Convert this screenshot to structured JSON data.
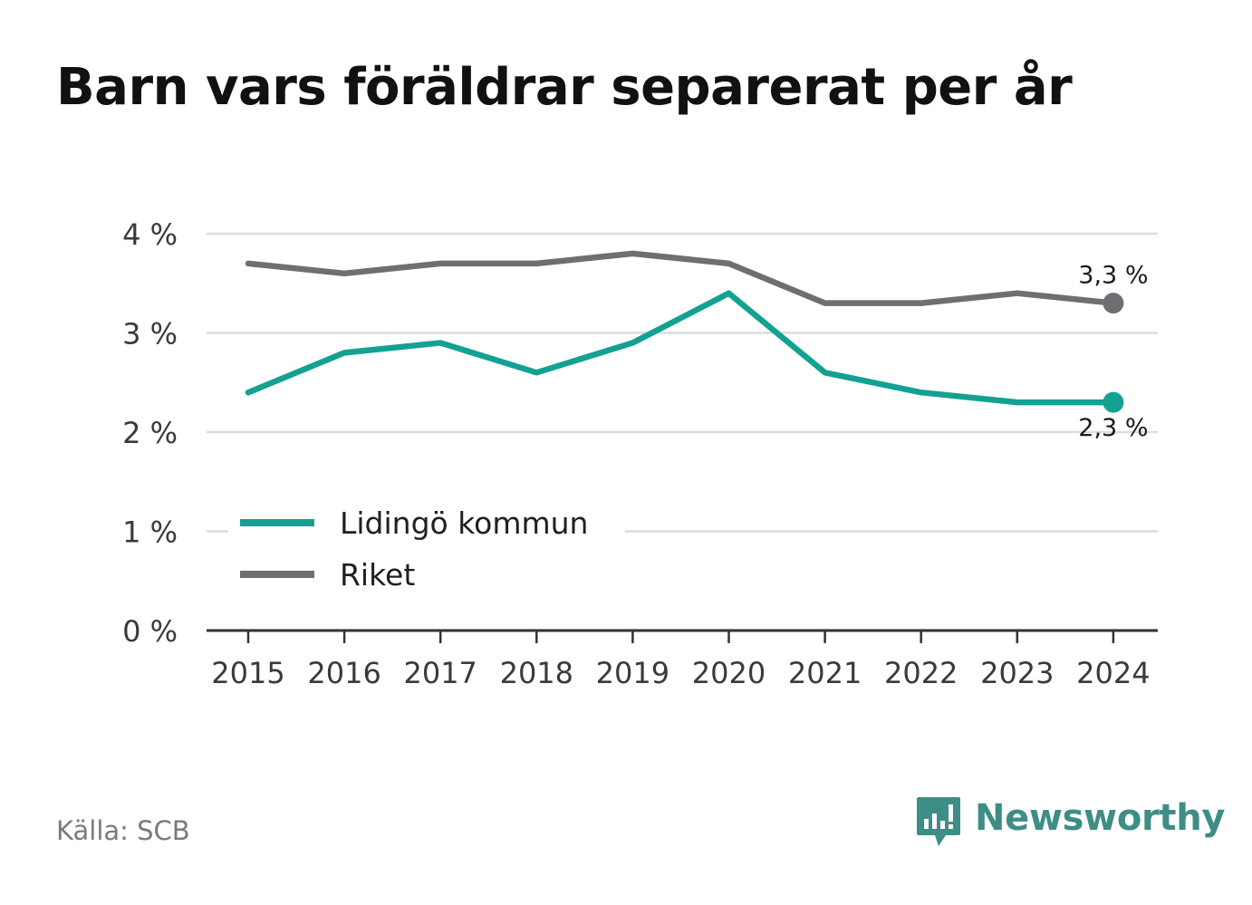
{
  "title": "Barn vars föräldrar separerat per år",
  "source": "Källa: SCB",
  "brand": {
    "name": "Newsworthy",
    "icon": "newsworthy-chart-bubble-icon",
    "color": "#3d8e86"
  },
  "chart_data": {
    "type": "line",
    "title": "Barn vars föräldrar separerat per år",
    "x": [
      "2015",
      "2016",
      "2017",
      "2018",
      "2019",
      "2020",
      "2021",
      "2022",
      "2023",
      "2024"
    ],
    "y_ticks": [
      {
        "value": 0,
        "label": "0 %"
      },
      {
        "value": 1,
        "label": "1 %"
      },
      {
        "value": 2,
        "label": "2 %"
      },
      {
        "value": 3,
        "label": "3 %"
      },
      {
        "value": 4,
        "label": "4 %"
      }
    ],
    "ylim": [
      0,
      4
    ],
    "y_unit": "%",
    "grid": true,
    "legend_position": "lower-left",
    "series": [
      {
        "name": "Lidingö kommun",
        "color": "#13a192",
        "values": [
          2.4,
          2.8,
          2.9,
          2.6,
          2.9,
          3.4,
          2.6,
          2.4,
          2.3,
          2.3
        ],
        "end_label": "2,3 %"
      },
      {
        "name": "Riket",
        "color": "#6e6e73",
        "values": [
          3.7,
          3.6,
          3.7,
          3.7,
          3.8,
          3.7,
          3.3,
          3.3,
          3.4,
          3.3
        ],
        "end_label": "3,3 %"
      }
    ]
  }
}
